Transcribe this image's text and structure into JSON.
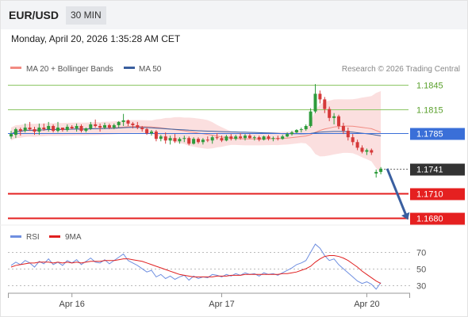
{
  "header": {
    "symbol": "EUR/USD",
    "timeframe": "30 MIN"
  },
  "datetime": "Monday, April 20, 2026 1:35:28 AM CET",
  "legend": [
    {
      "label": "MA 20 + Bollinger Bands",
      "color": "#f28b82"
    },
    {
      "label": "MA 50",
      "color": "#3a5f9e"
    }
  ],
  "credit": "Research © 2026 Trading Central",
  "rsi_legend": [
    {
      "label": "RSI",
      "color": "#6f8fe0"
    },
    {
      "label": "9MA",
      "color": "#e02020"
    }
  ],
  "colors": {
    "up": "#2e9c3c",
    "down": "#d63a3a",
    "resistance": "#8cc665",
    "pivot": "#3a6fd8",
    "support": "#e52020",
    "price_tag": "#333333",
    "band": "#fbdcdc",
    "ma20": "#f28b82",
    "ma50": "#3a5f9e",
    "arrow": "#3a5fa0"
  },
  "chart_data": [
    {
      "type": "candlestick",
      "title": "",
      "x_tick_labels": [
        "Apr 16",
        "Apr 17",
        "Apr 20"
      ],
      "levels": [
        {
          "label": "1.1845",
          "value": 1.1845,
          "kind": "resistance"
        },
        {
          "label": "1.1815",
          "value": 1.1815,
          "kind": "resistance"
        },
        {
          "label": "1.1785",
          "value": 1.1785,
          "kind": "pivot"
        },
        {
          "label": "1.1741",
          "value": 1.1741,
          "kind": "last"
        },
        {
          "label": "1.1710",
          "value": 1.171,
          "kind": "support"
        },
        {
          "label": "1.1680",
          "value": 1.168,
          "kind": "support"
        }
      ],
      "ylim": [
        1.1672,
        1.1852
      ],
      "candles": [
        [
          1.1781,
          1.1788,
          1.1778,
          1.1784
        ],
        [
          1.1783,
          1.1792,
          1.1779,
          1.179
        ],
        [
          1.179,
          1.1792,
          1.1782,
          1.1788
        ],
        [
          1.1788,
          1.1797,
          1.1786,
          1.1792
        ],
        [
          1.1792,
          1.1799,
          1.1788,
          1.179
        ],
        [
          1.179,
          1.1793,
          1.1783,
          1.1787
        ],
        [
          1.1787,
          1.1797,
          1.1783,
          1.1792
        ],
        [
          1.1792,
          1.1797,
          1.1788,
          1.179
        ],
        [
          1.179,
          1.1799,
          1.1787,
          1.1794
        ],
        [
          1.1794,
          1.1796,
          1.1786,
          1.1788
        ],
        [
          1.1788,
          1.1799,
          1.1786,
          1.1792
        ],
        [
          1.1792,
          1.1792,
          1.1787,
          1.1789
        ],
        [
          1.1789,
          1.1796,
          1.1787,
          1.1793
        ],
        [
          1.1793,
          1.1795,
          1.179,
          1.1791
        ],
        [
          1.1791,
          1.1797,
          1.1787,
          1.1794
        ],
        [
          1.1794,
          1.1796,
          1.1786,
          1.1788
        ],
        [
          1.1788,
          1.1792,
          1.1786,
          1.1791
        ],
        [
          1.1791,
          1.1799,
          1.1789,
          1.1796
        ],
        [
          1.1796,
          1.1802,
          1.1792,
          1.1794
        ],
        [
          1.1794,
          1.1797,
          1.1787,
          1.1792
        ],
        [
          1.1792,
          1.1798,
          1.179,
          1.1795
        ],
        [
          1.1795,
          1.1797,
          1.179,
          1.1792
        ],
        [
          1.1792,
          1.1797,
          1.179,
          1.1795
        ],
        [
          1.1795,
          1.18,
          1.1792,
          1.1799
        ],
        [
          1.1799,
          1.1809,
          1.1794,
          1.1801
        ],
        [
          1.1801,
          1.1802,
          1.1794,
          1.1797
        ],
        [
          1.1797,
          1.1799,
          1.1791,
          1.1795
        ],
        [
          1.1795,
          1.1799,
          1.179,
          1.1792
        ],
        [
          1.1792,
          1.1794,
          1.1787,
          1.179
        ],
        [
          1.179,
          1.1792,
          1.1783,
          1.1785
        ],
        [
          1.1785,
          1.1789,
          1.1782,
          1.1787
        ],
        [
          1.1787,
          1.1789,
          1.1775,
          1.1778
        ],
        [
          1.1778,
          1.1783,
          1.1775,
          1.1781
        ],
        [
          1.1781,
          1.1786,
          1.1772,
          1.1776
        ],
        [
          1.1776,
          1.1782,
          1.1771,
          1.1779
        ],
        [
          1.1779,
          1.1784,
          1.1773,
          1.1775
        ],
        [
          1.1775,
          1.178,
          1.1772,
          1.1778
        ],
        [
          1.1778,
          1.1782,
          1.1774,
          1.1779
        ],
        [
          1.1779,
          1.1781,
          1.177,
          1.1772
        ],
        [
          1.1772,
          1.178,
          1.1771,
          1.1778
        ],
        [
          1.1778,
          1.178,
          1.1772,
          1.1774
        ],
        [
          1.1774,
          1.1779,
          1.1771,
          1.1777
        ],
        [
          1.1777,
          1.1781,
          1.1774,
          1.1776
        ],
        [
          1.1776,
          1.1782,
          1.1772,
          1.178
        ],
        [
          1.178,
          1.1785,
          1.1777,
          1.1779
        ],
        [
          1.1779,
          1.1782,
          1.1774,
          1.1776
        ],
        [
          1.1776,
          1.1783,
          1.1775,
          1.1781
        ],
        [
          1.1781,
          1.1784,
          1.1776,
          1.1778
        ],
        [
          1.1778,
          1.1783,
          1.1776,
          1.1781
        ],
        [
          1.1781,
          1.1785,
          1.1777,
          1.1779
        ],
        [
          1.1779,
          1.1784,
          1.1776,
          1.1782
        ],
        [
          1.1782,
          1.1784,
          1.1778,
          1.1779
        ],
        [
          1.1779,
          1.1782,
          1.1776,
          1.178
        ],
        [
          1.178,
          1.1782,
          1.1775,
          1.1777
        ],
        [
          1.1777,
          1.1782,
          1.1776,
          1.1781
        ],
        [
          1.1781,
          1.1783,
          1.1776,
          1.1778
        ],
        [
          1.1778,
          1.1781,
          1.1775,
          1.1779
        ],
        [
          1.1779,
          1.1782,
          1.1776,
          1.1778
        ],
        [
          1.1778,
          1.1783,
          1.1777,
          1.1781
        ],
        [
          1.1781,
          1.1786,
          1.178,
          1.1784
        ],
        [
          1.1784,
          1.1788,
          1.1782,
          1.1786
        ],
        [
          1.1786,
          1.179,
          1.1785,
          1.1789
        ],
        [
          1.1789,
          1.1792,
          1.1786,
          1.179
        ],
        [
          1.179,
          1.1796,
          1.1788,
          1.1794
        ],
        [
          1.1794,
          1.1816,
          1.1792,
          1.1812
        ],
        [
          1.1812,
          1.1846,
          1.181,
          1.1834
        ],
        [
          1.1834,
          1.1838,
          1.1822,
          1.1827
        ],
        [
          1.1827,
          1.183,
          1.181,
          1.1815
        ],
        [
          1.1815,
          1.1818,
          1.18,
          1.1804
        ],
        [
          1.1804,
          1.181,
          1.1796,
          1.1806
        ],
        [
          1.1806,
          1.1808,
          1.179,
          1.1794
        ],
        [
          1.1794,
          1.1798,
          1.1784,
          1.1788
        ],
        [
          1.1788,
          1.1792,
          1.1776,
          1.178
        ],
        [
          1.178,
          1.1784,
          1.177,
          1.1774
        ],
        [
          1.1774,
          1.1777,
          1.1764,
          1.1767
        ],
        [
          1.1767,
          1.177,
          1.176,
          1.1762
        ],
        [
          1.1762,
          1.1766,
          1.1758,
          1.1764
        ],
        [
          1.1764,
          1.1766,
          1.1758,
          1.1761
        ],
        [
          1.1735,
          1.174,
          1.173,
          1.1737
        ],
        [
          1.1737,
          1.1743,
          1.1734,
          1.1741
        ]
      ]
    },
    {
      "type": "line",
      "title": "",
      "ylim": [
        22,
        82
      ],
      "y_ticks": [
        30,
        50,
        70
      ],
      "series": [
        {
          "name": "RSI",
          "values": [
            54,
            58,
            55,
            60,
            57,
            52,
            59,
            56,
            62,
            55,
            58,
            54,
            60,
            57,
            61,
            55,
            59,
            63,
            58,
            57,
            61,
            56,
            60,
            64,
            68,
            60,
            57,
            54,
            50,
            46,
            48,
            40,
            43,
            38,
            41,
            37,
            40,
            42,
            36,
            41,
            38,
            40,
            39,
            43,
            42,
            40,
            43,
            41,
            44,
            42,
            45,
            43,
            44,
            41,
            45,
            43,
            44,
            42,
            45,
            48,
            51,
            55,
            57,
            60,
            70,
            80,
            75,
            66,
            60,
            62,
            55,
            50,
            45,
            40,
            35,
            32,
            34,
            31,
            25,
            33
          ]
        },
        {
          "name": "9MA",
          "values": [
            52,
            54,
            55,
            56,
            57,
            57,
            58,
            58,
            58,
            57,
            58,
            57,
            58,
            57,
            58,
            57,
            58,
            59,
            59,
            59,
            60,
            60,
            60,
            61,
            62,
            62,
            61,
            60,
            59,
            57,
            55,
            53,
            51,
            49,
            47,
            45,
            43,
            42,
            41,
            40,
            40,
            40,
            40,
            40,
            41,
            41,
            41,
            42,
            42,
            42,
            43,
            43,
            43,
            43,
            43,
            43,
            43,
            43,
            44,
            44,
            45,
            46,
            48,
            50,
            53,
            58,
            62,
            65,
            66,
            66,
            65,
            63,
            60,
            56,
            52,
            47,
            43,
            39,
            35,
            32
          ]
        }
      ]
    }
  ]
}
